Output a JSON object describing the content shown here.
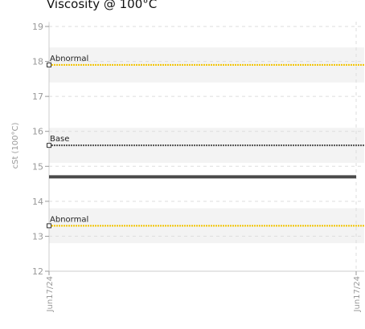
{
  "chart_data": {
    "type": "line",
    "title": "Viscosity @ 100°C",
    "xlabel": "",
    "ylabel": "cSt (100°C)",
    "x_categories": [
      "Jun17/24",
      "Jun17/24"
    ],
    "ylim": [
      12,
      19
    ],
    "yticks": [
      12,
      13,
      14,
      15,
      16,
      17,
      18,
      19
    ],
    "grid": true,
    "legend": "none",
    "bands": [
      {
        "from": 17.4,
        "to": 18.4
      },
      {
        "from": 15.1,
        "to": 16.1
      },
      {
        "from": 12.8,
        "to": 13.8
      }
    ],
    "reference_lines": [
      {
        "label": "Abnormal",
        "value": 17.9,
        "color": "#f2c300",
        "style": "dashed"
      },
      {
        "label": "Base",
        "value": 15.6,
        "color": "#555555",
        "style": "dashed"
      },
      {
        "label": "Abnormal",
        "value": 13.3,
        "color": "#f2c300",
        "style": "dashed"
      }
    ],
    "series": [
      {
        "values": [
          14.7,
          14.7
        ],
        "color": "#4a4a4a"
      }
    ]
  }
}
